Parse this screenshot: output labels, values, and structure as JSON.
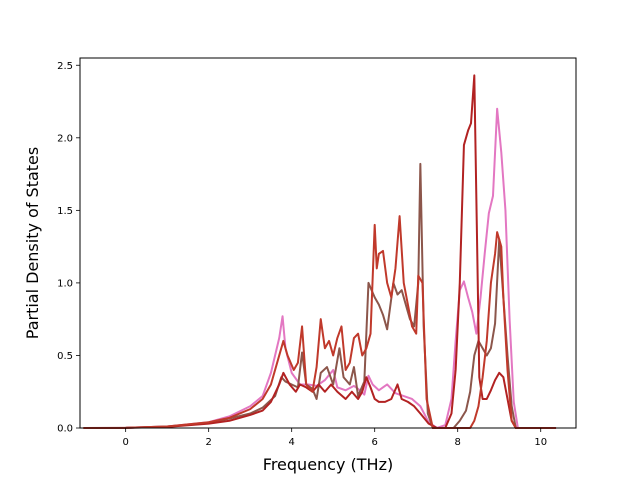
{
  "chart_data": {
    "type": "line",
    "title": "",
    "xlabel": "Frequency (THz)",
    "ylabel": "Partial Density of States",
    "xlim": [
      -1.1,
      10.85
    ],
    "ylim": [
      0.0,
      2.55
    ],
    "xticks": [
      0,
      2,
      4,
      6,
      8,
      10
    ],
    "yticks": [
      0.0,
      0.5,
      1.0,
      1.5,
      2.0,
      2.5
    ],
    "xtick_labels": [
      "0",
      "2",
      "4",
      "6",
      "8",
      "10"
    ],
    "ytick_labels": [
      "0.0",
      "0.5",
      "1.0",
      "1.5",
      "2.0",
      "2.5"
    ],
    "grid": false,
    "legend": "none",
    "series": [
      {
        "color": "#e377c2",
        "points": [
          [
            -1.0,
            0
          ],
          [
            0,
            0.001
          ],
          [
            1,
            0.01
          ],
          [
            2,
            0.04
          ],
          [
            2.5,
            0.08
          ],
          [
            3,
            0.15
          ],
          [
            3.3,
            0.22
          ],
          [
            3.5,
            0.38
          ],
          [
            3.7,
            0.62
          ],
          [
            3.78,
            0.77
          ],
          [
            3.85,
            0.55
          ],
          [
            4.0,
            0.38
          ],
          [
            4.2,
            0.3
          ],
          [
            4.4,
            0.3
          ],
          [
            4.6,
            0.29
          ],
          [
            4.8,
            0.33
          ],
          [
            5.0,
            0.4
          ],
          [
            5.1,
            0.28
          ],
          [
            5.3,
            0.26
          ],
          [
            5.5,
            0.29
          ],
          [
            5.6,
            0.27
          ],
          [
            5.75,
            0.23
          ],
          [
            5.85,
            0.36
          ],
          [
            5.95,
            0.3
          ],
          [
            6.1,
            0.26
          ],
          [
            6.3,
            0.3
          ],
          [
            6.5,
            0.24
          ],
          [
            6.7,
            0.22
          ],
          [
            6.9,
            0.2
          ],
          [
            7.1,
            0.15
          ],
          [
            7.3,
            0.04
          ],
          [
            7.5,
            0.0
          ],
          [
            7.7,
            0.02
          ],
          [
            7.85,
            0.2
          ],
          [
            7.95,
            0.6
          ],
          [
            8.05,
            0.95
          ],
          [
            8.15,
            1.01
          ],
          [
            8.25,
            0.9
          ],
          [
            8.35,
            0.8
          ],
          [
            8.45,
            0.65
          ],
          [
            8.55,
            0.9
          ],
          [
            8.65,
            1.2
          ],
          [
            8.75,
            1.48
          ],
          [
            8.85,
            1.6
          ],
          [
            8.95,
            2.2
          ],
          [
            9.05,
            1.9
          ],
          [
            9.15,
            1.5
          ],
          [
            9.25,
            0.75
          ],
          [
            9.35,
            0.18
          ],
          [
            9.45,
            0.0
          ],
          [
            10.35,
            0.0
          ]
        ]
      },
      {
        "color": "#8c564b",
        "points": [
          [
            -1.0,
            0
          ],
          [
            0,
            0.001
          ],
          [
            1,
            0.01
          ],
          [
            2,
            0.035
          ],
          [
            2.5,
            0.065
          ],
          [
            3,
            0.1
          ],
          [
            3.3,
            0.14
          ],
          [
            3.6,
            0.22
          ],
          [
            3.75,
            0.35
          ],
          [
            3.85,
            0.32
          ],
          [
            4.0,
            0.3
          ],
          [
            4.15,
            0.28
          ],
          [
            4.25,
            0.52
          ],
          [
            4.35,
            0.3
          ],
          [
            4.5,
            0.27
          ],
          [
            4.6,
            0.2
          ],
          [
            4.7,
            0.38
          ],
          [
            4.85,
            0.42
          ],
          [
            5.0,
            0.3
          ],
          [
            5.15,
            0.55
          ],
          [
            5.25,
            0.35
          ],
          [
            5.4,
            0.3
          ],
          [
            5.5,
            0.42
          ],
          [
            5.6,
            0.22
          ],
          [
            5.75,
            0.32
          ],
          [
            5.85,
            1.0
          ],
          [
            6.0,
            0.9
          ],
          [
            6.1,
            0.85
          ],
          [
            6.2,
            0.78
          ],
          [
            6.3,
            0.68
          ],
          [
            6.45,
            1.0
          ],
          [
            6.55,
            0.92
          ],
          [
            6.65,
            0.95
          ],
          [
            6.75,
            0.85
          ],
          [
            6.85,
            0.75
          ],
          [
            6.95,
            0.7
          ],
          [
            7.05,
            1.0
          ],
          [
            7.1,
            1.82
          ],
          [
            7.18,
            0.7
          ],
          [
            7.28,
            0.1
          ],
          [
            7.4,
            0.0
          ],
          [
            7.9,
            0.0
          ],
          [
            8.05,
            0.05
          ],
          [
            8.2,
            0.12
          ],
          [
            8.3,
            0.25
          ],
          [
            8.4,
            0.5
          ],
          [
            8.5,
            0.6
          ],
          [
            8.6,
            0.55
          ],
          [
            8.7,
            0.5
          ],
          [
            8.8,
            0.55
          ],
          [
            8.9,
            0.72
          ],
          [
            9.0,
            1.3
          ],
          [
            9.1,
            0.9
          ],
          [
            9.2,
            0.5
          ],
          [
            9.3,
            0.15
          ],
          [
            9.4,
            0.0
          ],
          [
            10.35,
            0.0
          ]
        ]
      },
      {
        "color": "#b22222",
        "points": [
          [
            -1.0,
            0
          ],
          [
            0,
            0.001
          ],
          [
            1,
            0.008
          ],
          [
            2,
            0.03
          ],
          [
            2.5,
            0.05
          ],
          [
            3,
            0.09
          ],
          [
            3.3,
            0.12
          ],
          [
            3.5,
            0.18
          ],
          [
            3.7,
            0.3
          ],
          [
            3.8,
            0.38
          ],
          [
            3.95,
            0.3
          ],
          [
            4.1,
            0.25
          ],
          [
            4.2,
            0.3
          ],
          [
            4.35,
            0.28
          ],
          [
            4.5,
            0.25
          ],
          [
            4.65,
            0.3
          ],
          [
            4.8,
            0.25
          ],
          [
            4.95,
            0.3
          ],
          [
            5.1,
            0.25
          ],
          [
            5.3,
            0.2
          ],
          [
            5.45,
            0.25
          ],
          [
            5.6,
            0.2
          ],
          [
            5.7,
            0.25
          ],
          [
            5.8,
            0.35
          ],
          [
            5.9,
            0.28
          ],
          [
            6.0,
            0.2
          ],
          [
            6.1,
            0.18
          ],
          [
            6.25,
            0.18
          ],
          [
            6.4,
            0.2
          ],
          [
            6.55,
            0.3
          ],
          [
            6.65,
            0.2
          ],
          [
            6.8,
            0.18
          ],
          [
            6.95,
            0.15
          ],
          [
            7.1,
            0.1
          ],
          [
            7.3,
            0.03
          ],
          [
            7.5,
            0.0
          ],
          [
            7.7,
            0.0
          ],
          [
            7.85,
            0.1
          ],
          [
            7.95,
            0.4
          ],
          [
            8.05,
            1.0
          ],
          [
            8.15,
            1.95
          ],
          [
            8.25,
            2.05
          ],
          [
            8.32,
            2.1
          ],
          [
            8.4,
            2.43
          ],
          [
            8.46,
            1.4
          ],
          [
            8.52,
            0.35
          ],
          [
            8.6,
            0.2
          ],
          [
            8.7,
            0.2
          ],
          [
            8.8,
            0.26
          ],
          [
            8.9,
            0.33
          ],
          [
            9.0,
            0.38
          ],
          [
            9.1,
            0.35
          ],
          [
            9.2,
            0.2
          ],
          [
            9.3,
            0.05
          ],
          [
            9.4,
            0.0
          ],
          [
            10.35,
            0.0
          ]
        ]
      },
      {
        "color": "#c0392b",
        "points": [
          [
            -1.0,
            0
          ],
          [
            0,
            0.001
          ],
          [
            1,
            0.01
          ],
          [
            2,
            0.04
          ],
          [
            2.5,
            0.07
          ],
          [
            3,
            0.13
          ],
          [
            3.3,
            0.2
          ],
          [
            3.5,
            0.3
          ],
          [
            3.7,
            0.5
          ],
          [
            3.8,
            0.6
          ],
          [
            3.9,
            0.5
          ],
          [
            4.05,
            0.4
          ],
          [
            4.15,
            0.45
          ],
          [
            4.25,
            0.7
          ],
          [
            4.35,
            0.3
          ],
          [
            4.5,
            0.25
          ],
          [
            4.6,
            0.42
          ],
          [
            4.7,
            0.75
          ],
          [
            4.8,
            0.55
          ],
          [
            4.9,
            0.6
          ],
          [
            5.0,
            0.5
          ],
          [
            5.1,
            0.62
          ],
          [
            5.2,
            0.7
          ],
          [
            5.3,
            0.4
          ],
          [
            5.4,
            0.45
          ],
          [
            5.5,
            0.62
          ],
          [
            5.6,
            0.65
          ],
          [
            5.7,
            0.5
          ],
          [
            5.8,
            0.55
          ],
          [
            5.9,
            0.65
          ],
          [
            6.0,
            1.4
          ],
          [
            6.05,
            1.1
          ],
          [
            6.1,
            1.2
          ],
          [
            6.2,
            1.22
          ],
          [
            6.3,
            1.0
          ],
          [
            6.4,
            0.9
          ],
          [
            6.5,
            1.1
          ],
          [
            6.6,
            1.46
          ],
          [
            6.7,
            1.0
          ],
          [
            6.8,
            0.85
          ],
          [
            6.9,
            0.7
          ],
          [
            7.0,
            0.65
          ],
          [
            7.05,
            1.05
          ],
          [
            7.15,
            1.0
          ],
          [
            7.25,
            0.2
          ],
          [
            7.4,
            0.0
          ],
          [
            8.3,
            0.0
          ],
          [
            8.4,
            0.05
          ],
          [
            8.5,
            0.15
          ],
          [
            8.6,
            0.35
          ],
          [
            8.7,
            0.6
          ],
          [
            8.8,
            1.0
          ],
          [
            8.9,
            1.2
          ],
          [
            8.95,
            1.35
          ],
          [
            9.05,
            1.25
          ],
          [
            9.1,
            0.9
          ],
          [
            9.2,
            0.4
          ],
          [
            9.3,
            0.05
          ],
          [
            9.4,
            0.0
          ],
          [
            10.35,
            0.0
          ]
        ]
      }
    ]
  }
}
